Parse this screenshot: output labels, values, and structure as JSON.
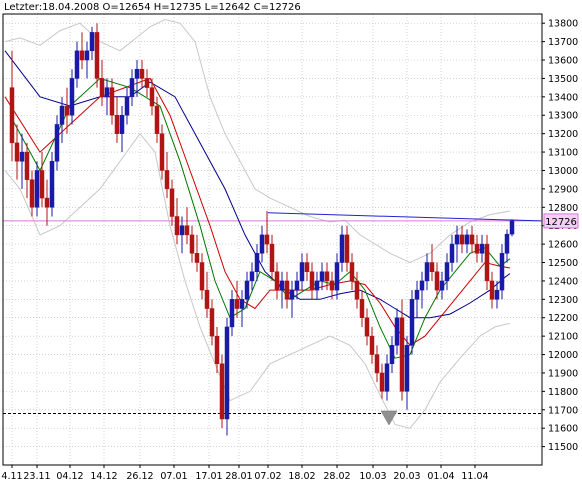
{
  "header": {
    "text": "Letzter:18.04.2008 O=12654 H=12735 L=12642 C=12726"
  },
  "colors": {
    "up_candle": "#1a1aa8",
    "down_candle": "#b01515",
    "sma_short": "#cc0000",
    "sma_fast": "#007700",
    "sma_long": "#00008b",
    "bollinger": "#c8c8c8",
    "price_line": "#dd77dd",
    "trendline": "#2222cc",
    "support_line": "#000000",
    "grid": "#b8b8b8",
    "marker": "#909090",
    "price_badge": "#f3d0f3"
  },
  "chart_data": {
    "type": "candlestick",
    "title": "Letzter:18.04.2008 O=12654 H=12735 L=12642 C=12726",
    "last": {
      "date": "18.04.2008",
      "open": 12654,
      "high": 12735,
      "low": 12642,
      "close": 12726
    },
    "current_price_label": "12726",
    "y_axis": {
      "side": "right",
      "range": [
        11400,
        13850
      ],
      "ticks": [
        11500,
        11600,
        11700,
        11800,
        11900,
        12000,
        12100,
        12200,
        12300,
        12400,
        12500,
        12600,
        12700,
        12800,
        12900,
        13000,
        13100,
        13200,
        13300,
        13400,
        13500,
        13600,
        13700,
        13800
      ]
    },
    "x_axis": {
      "labels": [
        "4.11",
        "23.11",
        "04.12",
        "14.12",
        "26.12",
        "07.01",
        "17.01",
        "28.01",
        "07.02",
        "18.02",
        "28.02",
        "10.03",
        "20.03",
        "01.04",
        "11.04"
      ]
    },
    "grid": true,
    "horizontal_lines": [
      {
        "kind": "current-price",
        "value": 12726
      },
      {
        "kind": "support",
        "value": 11680,
        "style": "dashed"
      }
    ],
    "trendline": [
      [
        268,
        12770
      ],
      [
        541,
        12726
      ]
    ],
    "marker": {
      "type": "down-triangle",
      "near_value": 11650
    },
    "candles": [
      [
        12,
        13450,
        13650,
        13050,
        13150
      ],
      [
        17,
        13150,
        13250,
        12950,
        13050
      ],
      [
        22,
        13050,
        13200,
        12900,
        13100
      ],
      [
        27,
        13100,
        13150,
        12850,
        12950
      ],
      [
        32,
        12950,
        13000,
        12750,
        12800
      ],
      [
        37,
        12800,
        13050,
        12750,
        13000
      ],
      [
        42,
        13000,
        13100,
        12800,
        12850
      ],
      [
        47,
        12850,
        12950,
        12700,
        12800
      ],
      [
        52,
        12800,
        13100,
        12750,
        13050
      ],
      [
        57,
        13050,
        13300,
        13000,
        13250
      ],
      [
        62,
        13250,
        13400,
        13150,
        13350
      ],
      [
        67,
        13350,
        13450,
        13200,
        13300
      ],
      [
        72,
        13300,
        13550,
        13250,
        13500
      ],
      [
        77,
        13500,
        13700,
        13450,
        13650
      ],
      [
        82,
        13650,
        13750,
        13550,
        13600
      ],
      [
        87,
        13600,
        13700,
        13500,
        13650
      ],
      [
        92,
        13650,
        13780,
        13600,
        13750
      ],
      [
        97,
        13750,
        13800,
        13450,
        13500
      ],
      [
        102,
        13500,
        13600,
        13350,
        13400
      ],
      [
        107,
        13400,
        13500,
        13300,
        13450
      ],
      [
        112,
        13450,
        13500,
        13250,
        13300
      ],
      [
        117,
        13300,
        13400,
        13150,
        13200
      ],
      [
        122,
        13200,
        13350,
        13100,
        13300
      ],
      [
        127,
        13300,
        13450,
        13250,
        13400
      ],
      [
        132,
        13400,
        13550,
        13350,
        13500
      ],
      [
        137,
        13500,
        13600,
        13400,
        13550
      ],
      [
        142,
        13550,
        13600,
        13450,
        13500
      ],
      [
        147,
        13500,
        13550,
        13400,
        13450
      ],
      [
        152,
        13450,
        13500,
        13300,
        13350
      ],
      [
        157,
        13350,
        13400,
        13150,
        13200
      ],
      [
        162,
        13200,
        13250,
        12950,
        13000
      ],
      [
        167,
        13000,
        13100,
        12850,
        12900
      ],
      [
        172,
        12900,
        12950,
        12700,
        12750
      ],
      [
        177,
        12750,
        12850,
        12600,
        12650
      ],
      [
        182,
        12650,
        12750,
        12550,
        12700
      ],
      [
        187,
        12700,
        12800,
        12600,
        12650
      ],
      [
        192,
        12650,
        12700,
        12500,
        12550
      ],
      [
        197,
        12550,
        12650,
        12450,
        12500
      ],
      [
        202,
        12500,
        12550,
        12300,
        12350
      ],
      [
        207,
        12350,
        12450,
        12200,
        12250
      ],
      [
        212,
        12250,
        12300,
        12050,
        12100
      ],
      [
        217,
        12100,
        12150,
        11900,
        11950
      ],
      [
        222,
        11950,
        12000,
        11600,
        11650
      ],
      [
        227,
        11650,
        12200,
        11560,
        12150
      ],
      [
        232,
        12150,
        12350,
        12100,
        12300
      ],
      [
        237,
        12300,
        12400,
        12200,
        12250
      ],
      [
        242,
        12250,
        12350,
        12150,
        12300
      ],
      [
        247,
        12300,
        12450,
        12250,
        12400
      ],
      [
        252,
        12400,
        12500,
        12350,
        12450
      ],
      [
        257,
        12450,
        12600,
        12400,
        12550
      ],
      [
        262,
        12550,
        12700,
        12500,
        12650
      ],
      [
        267,
        12650,
        12780,
        12550,
        12600
      ],
      [
        272,
        12600,
        12650,
        12400,
        12450
      ],
      [
        277,
        12450,
        12500,
        12300,
        12350
      ],
      [
        282,
        12350,
        12450,
        12250,
        12400
      ],
      [
        287,
        12400,
        12450,
        12250,
        12300
      ],
      [
        292,
        12300,
        12400,
        12200,
        12350
      ],
      [
        297,
        12350,
        12450,
        12300,
        12400
      ],
      [
        302,
        12400,
        12550,
        12350,
        12500
      ],
      [
        307,
        12500,
        12550,
        12400,
        12450
      ],
      [
        312,
        12450,
        12500,
        12300,
        12350
      ],
      [
        317,
        12350,
        12450,
        12300,
        12400
      ],
      [
        322,
        12400,
        12500,
        12350,
        12450
      ],
      [
        327,
        12450,
        12500,
        12350,
        12400
      ],
      [
        332,
        12400,
        12450,
        12300,
        12350
      ],
      [
        337,
        12350,
        12550,
        12300,
        12500
      ],
      [
        342,
        12500,
        12700,
        12450,
        12650
      ],
      [
        347,
        12650,
        12700,
        12450,
        12500
      ],
      [
        352,
        12500,
        12550,
        12350,
        12400
      ],
      [
        357,
        12400,
        12450,
        12250,
        12300
      ],
      [
        362,
        12300,
        12350,
        12150,
        12200
      ],
      [
        367,
        12200,
        12250,
        12050,
        12100
      ],
      [
        372,
        12100,
        12150,
        11950,
        12000
      ],
      [
        377,
        12000,
        12050,
        11850,
        11900
      ],
      [
        382,
        11900,
        11950,
        11760,
        11800
      ],
      [
        387,
        11800,
        12000,
        11750,
        11950
      ],
      [
        392,
        11950,
        12100,
        11900,
        12050
      ],
      [
        397,
        12050,
        12250,
        12000,
        12200
      ],
      [
        402,
        12200,
        12300,
        11750,
        11800
      ],
      [
        407,
        11800,
        12100,
        11700,
        12050
      ],
      [
        412,
        12050,
        12350,
        12000,
        12300
      ],
      [
        417,
        12300,
        12400,
        12200,
        12350
      ],
      [
        422,
        12350,
        12450,
        12250,
        12400
      ],
      [
        427,
        12400,
        12550,
        12350,
        12500
      ],
      [
        432,
        12500,
        12600,
        12400,
        12450
      ],
      [
        437,
        12450,
        12500,
        12300,
        12350
      ],
      [
        442,
        12350,
        12450,
        12300,
        12400
      ],
      [
        447,
        12400,
        12550,
        12350,
        12500
      ],
      [
        452,
        12500,
        12650,
        12450,
        12600
      ],
      [
        457,
        12600,
        12700,
        12500,
        12650
      ],
      [
        462,
        12650,
        12700,
        12550,
        12600
      ],
      [
        467,
        12600,
        12680,
        12550,
        12650
      ],
      [
        472,
        12650,
        12700,
        12550,
        12600
      ],
      [
        477,
        12600,
        12650,
        12500,
        12550
      ],
      [
        482,
        12550,
        12650,
        12500,
        12600
      ],
      [
        487,
        12600,
        12650,
        12350,
        12400
      ],
      [
        492,
        12400,
        12450,
        12250,
        12300
      ],
      [
        497,
        12300,
        12400,
        12250,
        12350
      ],
      [
        502,
        12350,
        12600,
        12300,
        12550
      ],
      [
        507,
        12550,
        12680,
        12500,
        12654
      ],
      [
        512,
        12654,
        12735,
        12642,
        12726
      ]
    ],
    "sma_fast_line": [
      [
        10,
        13300
      ],
      [
        40,
        13000
      ],
      [
        70,
        13350
      ],
      [
        100,
        13500
      ],
      [
        130,
        13450
      ],
      [
        160,
        13350
      ],
      [
        180,
        13050
      ],
      [
        200,
        12700
      ],
      [
        215,
        12400
      ],
      [
        230,
        12200
      ],
      [
        245,
        12250
      ],
      [
        260,
        12450
      ],
      [
        275,
        12400
      ],
      [
        290,
        12300
      ],
      [
        305,
        12350
      ],
      [
        320,
        12400
      ],
      [
        335,
        12380
      ],
      [
        350,
        12450
      ],
      [
        365,
        12350
      ],
      [
        380,
        12150
      ],
      [
        395,
        11980
      ],
      [
        410,
        12000
      ],
      [
        425,
        12200
      ],
      [
        440,
        12350
      ],
      [
        455,
        12450
      ],
      [
        470,
        12550
      ],
      [
        485,
        12580
      ],
      [
        500,
        12480
      ],
      [
        510,
        12520
      ]
    ],
    "sma_short_line": [
      [
        5,
        13400
      ],
      [
        40,
        13100
      ],
      [
        70,
        13250
      ],
      [
        100,
        13400
      ],
      [
        125,
        13450
      ],
      [
        150,
        13500
      ],
      [
        170,
        13300
      ],
      [
        190,
        13000
      ],
      [
        210,
        12700
      ],
      [
        225,
        12450
      ],
      [
        240,
        12300
      ],
      [
        255,
        12250
      ],
      [
        270,
        12350
      ],
      [
        290,
        12350
      ],
      [
        310,
        12350
      ],
      [
        330,
        12380
      ],
      [
        350,
        12400
      ],
      [
        365,
        12380
      ],
      [
        380,
        12280
      ],
      [
        395,
        12150
      ],
      [
        410,
        12050
      ],
      [
        425,
        12100
      ],
      [
        440,
        12200
      ],
      [
        455,
        12300
      ],
      [
        470,
        12400
      ],
      [
        485,
        12500
      ],
      [
        500,
        12480
      ],
      [
        510,
        12470
      ]
    ],
    "sma_long_line": [
      [
        5,
        13650
      ],
      [
        40,
        13400
      ],
      [
        70,
        13350
      ],
      [
        100,
        13400
      ],
      [
        130,
        13400
      ],
      [
        150,
        13480
      ],
      [
        175,
        13400
      ],
      [
        200,
        13150
      ],
      [
        225,
        12900
      ],
      [
        245,
        12650
      ],
      [
        265,
        12450
      ],
      [
        285,
        12350
      ],
      [
        300,
        12300
      ],
      [
        320,
        12300
      ],
      [
        340,
        12330
      ],
      [
        360,
        12350
      ],
      [
        380,
        12300
      ],
      [
        395,
        12250
      ],
      [
        410,
        12200
      ],
      [
        430,
        12200
      ],
      [
        450,
        12220
      ],
      [
        470,
        12280
      ],
      [
        490,
        12350
      ],
      [
        505,
        12420
      ],
      [
        510,
        12440
      ]
    ],
    "bollinger_upper": [
      [
        5,
        13700
      ],
      [
        20,
        13720
      ],
      [
        40,
        13680
      ],
      [
        60,
        13760
      ],
      [
        80,
        13800
      ],
      [
        100,
        13700
      ],
      [
        120,
        13650
      ],
      [
        150,
        13780
      ],
      [
        165,
        13820
      ],
      [
        180,
        13800
      ],
      [
        195,
        13700
      ],
      [
        210,
        13400
      ],
      [
        225,
        13200
      ],
      [
        240,
        13050
      ],
      [
        255,
        12900
      ],
      [
        270,
        12850
      ],
      [
        290,
        12800
      ],
      [
        310,
        12750
      ],
      [
        330,
        12720
      ],
      [
        345,
        12730
      ],
      [
        360,
        12650
      ],
      [
        375,
        12600
      ],
      [
        390,
        12550
      ],
      [
        410,
        12500
      ],
      [
        430,
        12550
      ],
      [
        450,
        12650
      ],
      [
        470,
        12720
      ],
      [
        490,
        12760
      ],
      [
        510,
        12780
      ]
    ],
    "bollinger_lower": [
      [
        5,
        13000
      ],
      [
        20,
        12900
      ],
      [
        40,
        12650
      ],
      [
        60,
        12700
      ],
      [
        80,
        12800
      ],
      [
        100,
        12900
      ],
      [
        120,
        13050
      ],
      [
        140,
        13200
      ],
      [
        155,
        13100
      ],
      [
        170,
        12700
      ],
      [
        185,
        12400
      ],
      [
        200,
        12150
      ],
      [
        215,
        11950
      ],
      [
        230,
        11750
      ],
      [
        250,
        11800
      ],
      [
        270,
        11950
      ],
      [
        290,
        12000
      ],
      [
        310,
        12050
      ],
      [
        330,
        12100
      ],
      [
        350,
        12050
      ],
      [
        365,
        11950
      ],
      [
        380,
        11780
      ],
      [
        395,
        11620
      ],
      [
        410,
        11600
      ],
      [
        425,
        11700
      ],
      [
        440,
        11850
      ],
      [
        460,
        11980
      ],
      [
        480,
        12100
      ],
      [
        495,
        12150
      ],
      [
        510,
        12170
      ]
    ]
  }
}
